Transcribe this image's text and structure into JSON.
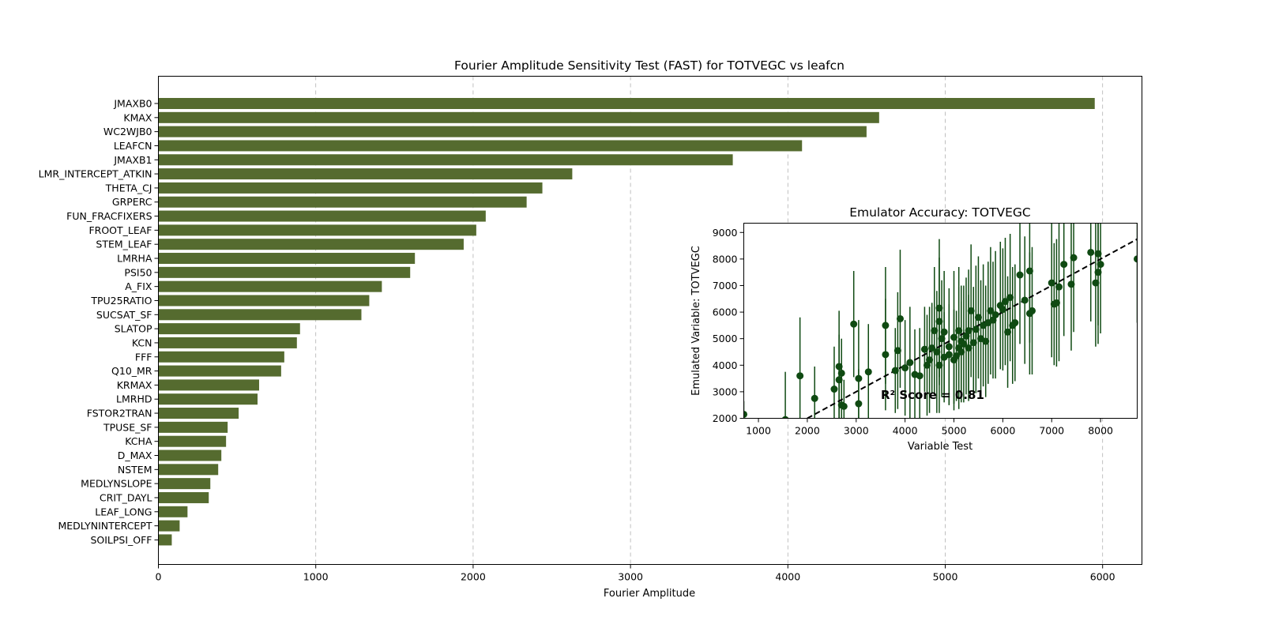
{
  "colors": {
    "bar": "#556b2f",
    "point": "#0f4a12",
    "errorbar": "#0f4a12",
    "grid": "#b0b0b0",
    "identity_line": "#000000"
  },
  "chart_data": [
    {
      "type": "bar",
      "orientation": "horizontal",
      "title": "Fourier Amplitude Sensitivity Test (FAST) for TOTVEGC vs leafcn",
      "xlabel": "Fourier Amplitude",
      "ylabel": "",
      "xlim": [
        0,
        6250
      ],
      "xticks": [
        0,
        1000,
        2000,
        3000,
        4000,
        5000,
        6000
      ],
      "grid": "x-dashed",
      "categories": [
        "JMAXB0",
        "KMAX",
        "WC2WJB0",
        "LEAFCN",
        "JMAXB1",
        "LMR_INTERCEPT_ATKIN",
        "THETA_CJ",
        "GRPERC",
        "FUN_FRACFIXERS",
        "FROOT_LEAF",
        "STEM_LEAF",
        "LMRHA",
        "PSI50",
        "A_FIX",
        "TPU25RATIO",
        "SUCSAT_SF",
        "SLATOP",
        "KCN",
        "FFF",
        "Q10_MR",
        "KRMAX",
        "LMRHD",
        "FSTOR2TRAN",
        "TPUSE_SF",
        "KCHA",
        "D_MAX",
        "NSTEM",
        "MEDLYNSLOPE",
        "CRIT_DAYL",
        "LEAF_LONG",
        "MEDLYNINTERCEPT",
        "SOILPSI_OFF"
      ],
      "values": [
        5950,
        4580,
        4500,
        4090,
        3650,
        2630,
        2440,
        2340,
        2080,
        2020,
        1940,
        1630,
        1600,
        1420,
        1340,
        1290,
        900,
        880,
        800,
        780,
        640,
        630,
        510,
        440,
        430,
        400,
        380,
        330,
        320,
        185,
        135,
        85
      ]
    },
    {
      "type": "scatter",
      "title": "Emulator Accuracy: TOTVEGC",
      "xlabel": "Variable Test",
      "ylabel": "Emulated Variable: TOTVEGC",
      "xlim": [
        700,
        8750
      ],
      "ylim": [
        2000,
        9350
      ],
      "xticks": [
        1000,
        2000,
        3000,
        4000,
        5000,
        6000,
        7000,
        8000
      ],
      "yticks": [
        2000,
        3000,
        4000,
        5000,
        6000,
        7000,
        8000,
        9000
      ],
      "annotation": "R² Score = 0.81",
      "identity_line": true,
      "points": [
        [
          700,
          2150,
          500
        ],
        [
          1550,
          1950,
          1800
        ],
        [
          1850,
          3600,
          2200
        ],
        [
          2150,
          2750,
          1200
        ],
        [
          2550,
          3100,
          1600
        ],
        [
          2650,
          3450,
          1700
        ],
        [
          2650,
          3950,
          2100
        ],
        [
          2700,
          3700,
          1300
        ],
        [
          2700,
          2500,
          1100
        ],
        [
          2750,
          2450,
          1000
        ],
        [
          2950,
          5550,
          2000
        ],
        [
          3050,
          3500,
          2200
        ],
        [
          3050,
          2550,
          1300
        ],
        [
          3250,
          3750,
          1800
        ],
        [
          3600,
          5500,
          2200
        ],
        [
          3600,
          4400,
          2100
        ],
        [
          3800,
          3800,
          1600
        ],
        [
          3850,
          4550,
          2200
        ],
        [
          3900,
          5750,
          2600
        ],
        [
          4000,
          3900,
          1800
        ],
        [
          4100,
          4100,
          2100
        ],
        [
          4200,
          3650,
          1700
        ],
        [
          4300,
          3600,
          1800
        ],
        [
          4400,
          4600,
          1600
        ],
        [
          4450,
          4000,
          1900
        ],
        [
          4500,
          4200,
          2000
        ],
        [
          4550,
          4650,
          1700
        ],
        [
          4600,
          5300,
          2400
        ],
        [
          4650,
          4500,
          2300
        ],
        [
          4700,
          6150,
          2600
        ],
        [
          4700,
          5650,
          2400
        ],
        [
          4700,
          4000,
          1800
        ],
        [
          4750,
          5000,
          2200
        ],
        [
          4800,
          4300,
          1700
        ],
        [
          4800,
          5250,
          2300
        ],
        [
          4900,
          4400,
          1900
        ],
        [
          4900,
          4700,
          2200
        ],
        [
          5000,
          4200,
          1900
        ],
        [
          5000,
          5050,
          2500
        ],
        [
          5050,
          4350,
          1700
        ],
        [
          5100,
          4650,
          2300
        ],
        [
          5100,
          5300,
          2400
        ],
        [
          5150,
          4500,
          1900
        ],
        [
          5150,
          4900,
          2100
        ],
        [
          5200,
          4800,
          2200
        ],
        [
          5250,
          5100,
          2200
        ],
        [
          5300,
          5300,
          2300
        ],
        [
          5300,
          4650,
          2000
        ],
        [
          5350,
          6050,
          2500
        ],
        [
          5400,
          4850,
          2100
        ],
        [
          5450,
          5350,
          2400
        ],
        [
          5500,
          5800,
          2300
        ],
        [
          5550,
          5000,
          2200
        ],
        [
          5600,
          5500,
          2300
        ],
        [
          5650,
          4900,
          2100
        ],
        [
          5700,
          5600,
          2300
        ],
        [
          5750,
          6050,
          2400
        ],
        [
          5800,
          5700,
          2200
        ],
        [
          5850,
          5900,
          2400
        ],
        [
          5950,
          6250,
          2400
        ],
        [
          6000,
          6100,
          2300
        ],
        [
          6050,
          6400,
          2400
        ],
        [
          6100,
          5250,
          2100
        ],
        [
          6150,
          6550,
          2400
        ],
        [
          6200,
          5500,
          2200
        ],
        [
          6250,
          5600,
          2200
        ],
        [
          6350,
          7400,
          2600
        ],
        [
          6450,
          6450,
          2400
        ],
        [
          6550,
          7550,
          2700
        ],
        [
          6550,
          5950,
          2300
        ],
        [
          6600,
          6050,
          2400
        ],
        [
          7000,
          7100,
          2800
        ],
        [
          7050,
          6300,
          2300
        ],
        [
          7100,
          6350,
          2400
        ],
        [
          7150,
          6950,
          2800
        ],
        [
          7250,
          7800,
          2700
        ],
        [
          7400,
          7050,
          2500
        ],
        [
          7450,
          8050,
          2800
        ],
        [
          7800,
          8250,
          2600
        ],
        [
          7900,
          7100,
          2400
        ],
        [
          7950,
          8200,
          2700
        ],
        [
          7950,
          7500,
          2700
        ],
        [
          8000,
          7800,
          2600
        ],
        [
          8750,
          8000,
          2400
        ]
      ]
    }
  ]
}
